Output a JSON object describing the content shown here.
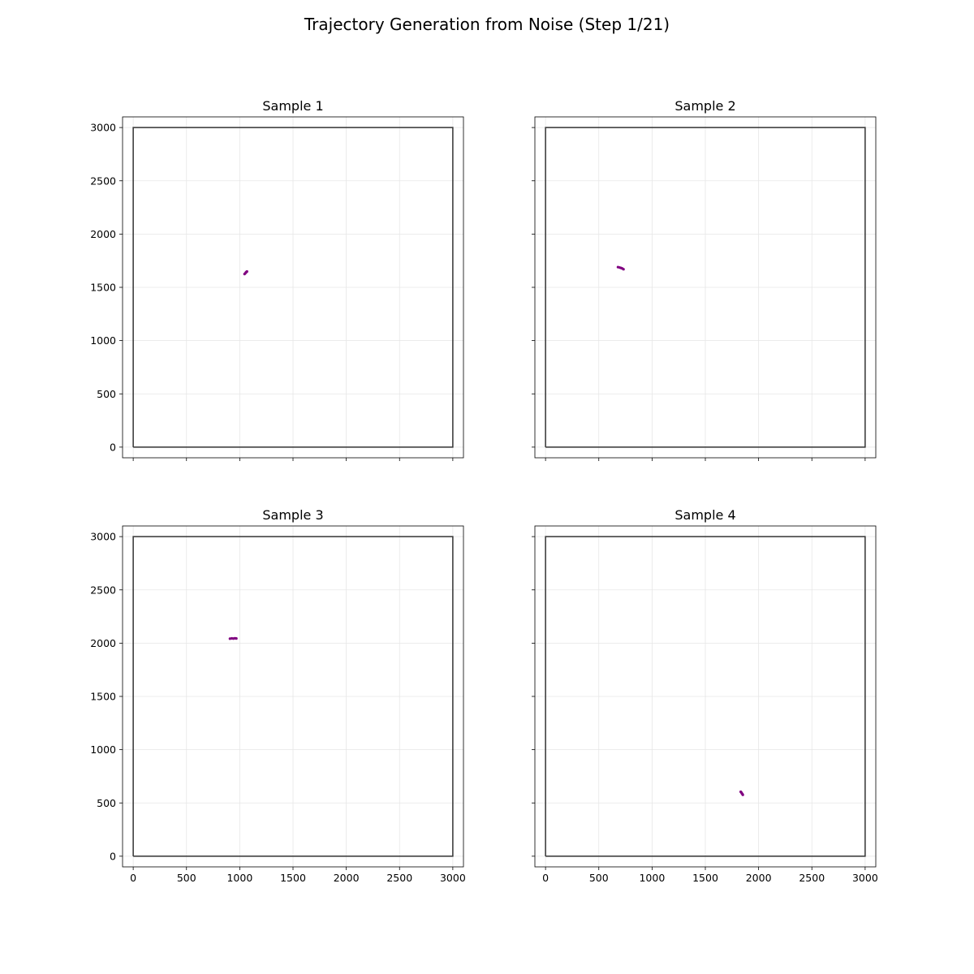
{
  "figure": {
    "title": "Trajectory Generation from Noise (Step 1/21)"
  },
  "colors": {
    "trajectory": "#800080",
    "boundary": "#333333",
    "grid": "#e6e6e6",
    "axis": "#000000"
  },
  "chart_data": [
    {
      "type": "line",
      "title": "Sample 1",
      "xlabel": "",
      "ylabel": "",
      "xlim": [
        -100,
        3100
      ],
      "ylim": [
        -100,
        3100
      ],
      "xticks": [
        0,
        500,
        1000,
        1500,
        2000,
        2500,
        3000
      ],
      "yticks": [
        0,
        500,
        1000,
        1500,
        2000,
        2500,
        3000
      ],
      "show_xticklabels": false,
      "show_yticklabels": true,
      "grid": true,
      "boundary": [
        [
          0,
          0
        ],
        [
          3000,
          0
        ],
        [
          3000,
          3000
        ],
        [
          0,
          3000
        ],
        [
          0,
          0
        ]
      ],
      "trajectory": {
        "x": [
          1045,
          1052,
          1058,
          1063,
          1068
        ],
        "y": [
          1625,
          1632,
          1640,
          1645,
          1649
        ]
      }
    },
    {
      "type": "line",
      "title": "Sample 2",
      "xlabel": "",
      "ylabel": "",
      "xlim": [
        -100,
        3100
      ],
      "ylim": [
        -100,
        3100
      ],
      "xticks": [
        0,
        500,
        1000,
        1500,
        2000,
        2500,
        3000
      ],
      "yticks": [
        0,
        500,
        1000,
        1500,
        2000,
        2500,
        3000
      ],
      "show_xticklabels": false,
      "show_yticklabels": false,
      "grid": true,
      "boundary": [
        [
          0,
          0
        ],
        [
          3000,
          0
        ],
        [
          3000,
          3000
        ],
        [
          0,
          3000
        ],
        [
          0,
          0
        ]
      ],
      "trajectory": {
        "x": [
          680,
          695,
          708,
          720,
          732
        ],
        "y": [
          1690,
          1686,
          1682,
          1677,
          1670
        ]
      }
    },
    {
      "type": "line",
      "title": "Sample 3",
      "xlabel": "",
      "ylabel": "",
      "xlim": [
        -100,
        3100
      ],
      "ylim": [
        -100,
        3100
      ],
      "xticks": [
        0,
        500,
        1000,
        1500,
        2000,
        2500,
        3000
      ],
      "yticks": [
        0,
        500,
        1000,
        1500,
        2000,
        2500,
        3000
      ],
      "show_xticklabels": true,
      "show_yticklabels": true,
      "grid": true,
      "boundary": [
        [
          0,
          0
        ],
        [
          3000,
          0
        ],
        [
          3000,
          3000
        ],
        [
          0,
          3000
        ],
        [
          0,
          0
        ]
      ],
      "trajectory": {
        "x": [
          908,
          925,
          940,
          955,
          968
        ],
        "y": [
          2042,
          2045,
          2043,
          2046,
          2044
        ]
      }
    },
    {
      "type": "line",
      "title": "Sample 4",
      "xlabel": "",
      "ylabel": "",
      "xlim": [
        -100,
        3100
      ],
      "ylim": [
        -100,
        3100
      ],
      "xticks": [
        0,
        500,
        1000,
        1500,
        2000,
        2500,
        3000
      ],
      "yticks": [
        0,
        500,
        1000,
        1500,
        2000,
        2500,
        3000
      ],
      "show_xticklabels": true,
      "show_yticklabels": false,
      "grid": true,
      "boundary": [
        [
          0,
          0
        ],
        [
          3000,
          0
        ],
        [
          3000,
          3000
        ],
        [
          0,
          3000
        ],
        [
          0,
          0
        ]
      ],
      "trajectory": {
        "x": [
          1832,
          1838,
          1843,
          1848,
          1852
        ],
        "y": [
          605,
          598,
          590,
          583,
          576
        ]
      }
    }
  ]
}
